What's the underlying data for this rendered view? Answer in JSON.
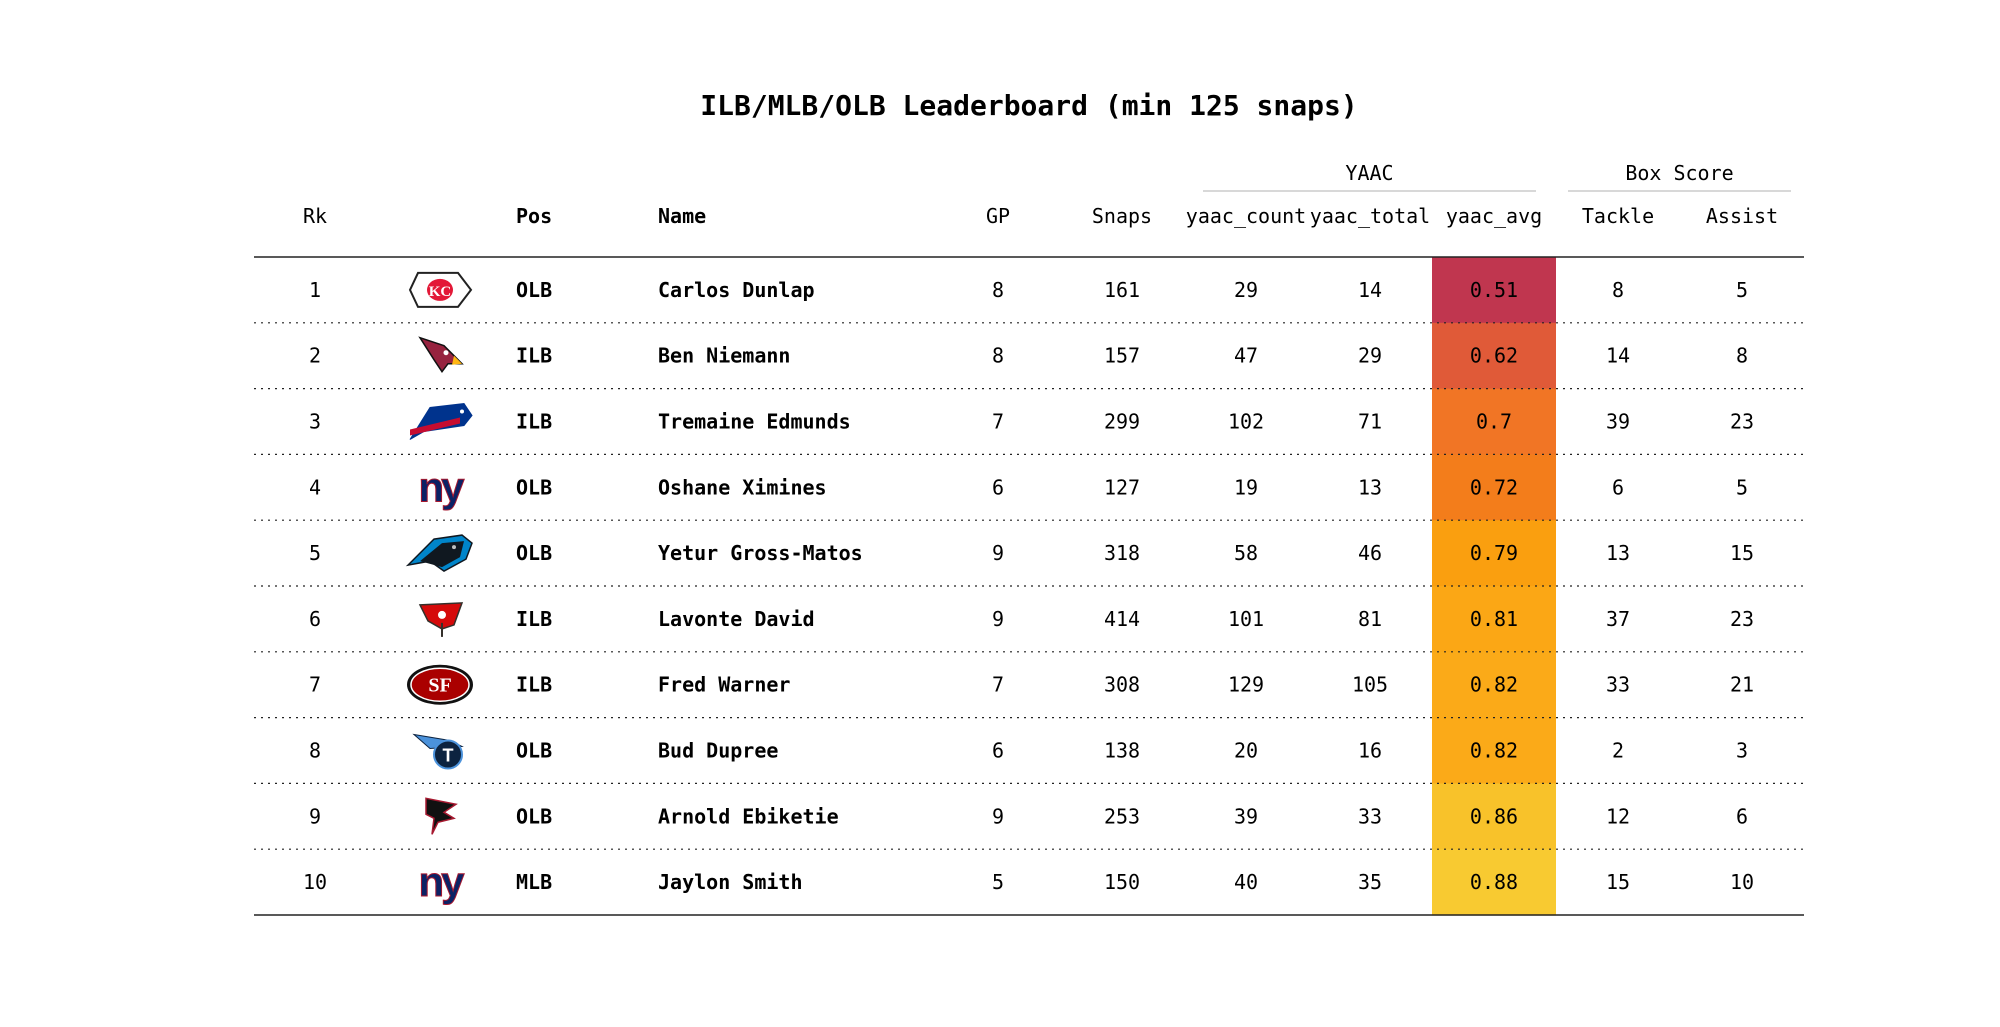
{
  "chart_data": {
    "type": "table",
    "title": "ILB/MLB/OLB Leaderboard (min 125 snaps)",
    "column_groups": [
      {
        "label": "YAAC",
        "columns": [
          "yaac_count",
          "yaac_total",
          "yaac_avg"
        ]
      },
      {
        "label": "Box Score",
        "columns": [
          "Tackle",
          "Assist"
        ]
      }
    ],
    "columns": [
      {
        "key": "rk",
        "label": "Rk",
        "bold": false
      },
      {
        "key": "logo",
        "label": "",
        "bold": false
      },
      {
        "key": "pos",
        "label": "Pos",
        "bold": true
      },
      {
        "key": "name",
        "label": "Name",
        "bold": true
      },
      {
        "key": "gp",
        "label": "GP",
        "bold": false
      },
      {
        "key": "snaps",
        "label": "Snaps",
        "bold": false
      },
      {
        "key": "yaac_count",
        "label": "yaac_count",
        "bold": false
      },
      {
        "key": "yaac_total",
        "label": "yaac_total",
        "bold": false
      },
      {
        "key": "yaac_avg",
        "label": "yaac_avg",
        "bold": false
      },
      {
        "key": "tackle",
        "label": "Tackle",
        "bold": false
      },
      {
        "key": "assist",
        "label": "Assist",
        "bold": false
      }
    ],
    "rows": [
      {
        "rk": 1,
        "logo": "chiefs-logo",
        "pos": "OLB",
        "name": "Carlos Dunlap",
        "gp": 8,
        "snaps": 161,
        "yaac_count": 29,
        "yaac_total": 14,
        "yaac_avg": "0.51",
        "tackle": 8,
        "assist": 5,
        "avg_color": "#c0364f"
      },
      {
        "rk": 2,
        "logo": "cardinals-logo",
        "pos": "ILB",
        "name": "Ben Niemann",
        "gp": 8,
        "snaps": 157,
        "yaac_count": 47,
        "yaac_total": 29,
        "yaac_avg": "0.62",
        "tackle": 14,
        "assist": 8,
        "avg_color": "#e05a38"
      },
      {
        "rk": 3,
        "logo": "bills-logo",
        "pos": "ILB",
        "name": "Tremaine Edmunds",
        "gp": 7,
        "snaps": 299,
        "yaac_count": 102,
        "yaac_total": 71,
        "yaac_avg": "0.7",
        "tackle": 39,
        "assist": 23,
        "avg_color": "#f17525"
      },
      {
        "rk": 4,
        "logo": "giants-logo",
        "pos": "OLB",
        "name": "Oshane Ximines",
        "gp": 6,
        "snaps": 127,
        "yaac_count": 19,
        "yaac_total": 13,
        "yaac_avg": "0.72",
        "tackle": 6,
        "assist": 5,
        "avg_color": "#f37d1b"
      },
      {
        "rk": 5,
        "logo": "panthers-logo",
        "pos": "OLB",
        "name": "Yetur Gross-Matos",
        "gp": 9,
        "snaps": 318,
        "yaac_count": 58,
        "yaac_total": 46,
        "yaac_avg": "0.79",
        "tackle": 13,
        "assist": 15,
        "avg_color": "#fa9f0f"
      },
      {
        "rk": 6,
        "logo": "buccaneers-logo",
        "pos": "ILB",
        "name": "Lavonte David",
        "gp": 9,
        "snaps": 414,
        "yaac_count": 101,
        "yaac_total": 81,
        "yaac_avg": "0.81",
        "tackle": 37,
        "assist": 23,
        "avg_color": "#fba715"
      },
      {
        "rk": 7,
        "logo": "49ers-logo",
        "pos": "ILB",
        "name": "Fred Warner",
        "gp": 7,
        "snaps": 308,
        "yaac_count": 129,
        "yaac_total": 105,
        "yaac_avg": "0.82",
        "tackle": 33,
        "assist": 21,
        "avg_color": "#fbaa18"
      },
      {
        "rk": 8,
        "logo": "titans-logo",
        "pos": "OLB",
        "name": "Bud Dupree",
        "gp": 6,
        "snaps": 138,
        "yaac_count": 20,
        "yaac_total": 16,
        "yaac_avg": "0.82",
        "tackle": 2,
        "assist": 3,
        "avg_color": "#fbaa18"
      },
      {
        "rk": 9,
        "logo": "falcons-logo",
        "pos": "OLB",
        "name": "Arnold Ebiketie",
        "gp": 9,
        "snaps": 253,
        "yaac_count": 39,
        "yaac_total": 33,
        "yaac_avg": "0.86",
        "tackle": 12,
        "assist": 6,
        "avg_color": "#f8c22a"
      },
      {
        "rk": 10,
        "logo": "giants-logo",
        "pos": "MLB",
        "name": "Jaylon Smith",
        "gp": 5,
        "snaps": 150,
        "yaac_count": 40,
        "yaac_total": 35,
        "yaac_avg": "0.88",
        "tackle": 15,
        "assist": 10,
        "avg_color": "#f8ca31"
      }
    ],
    "colors": {
      "text": "#111111",
      "rule": "#222222",
      "group_rule": "#cccccc"
    }
  }
}
